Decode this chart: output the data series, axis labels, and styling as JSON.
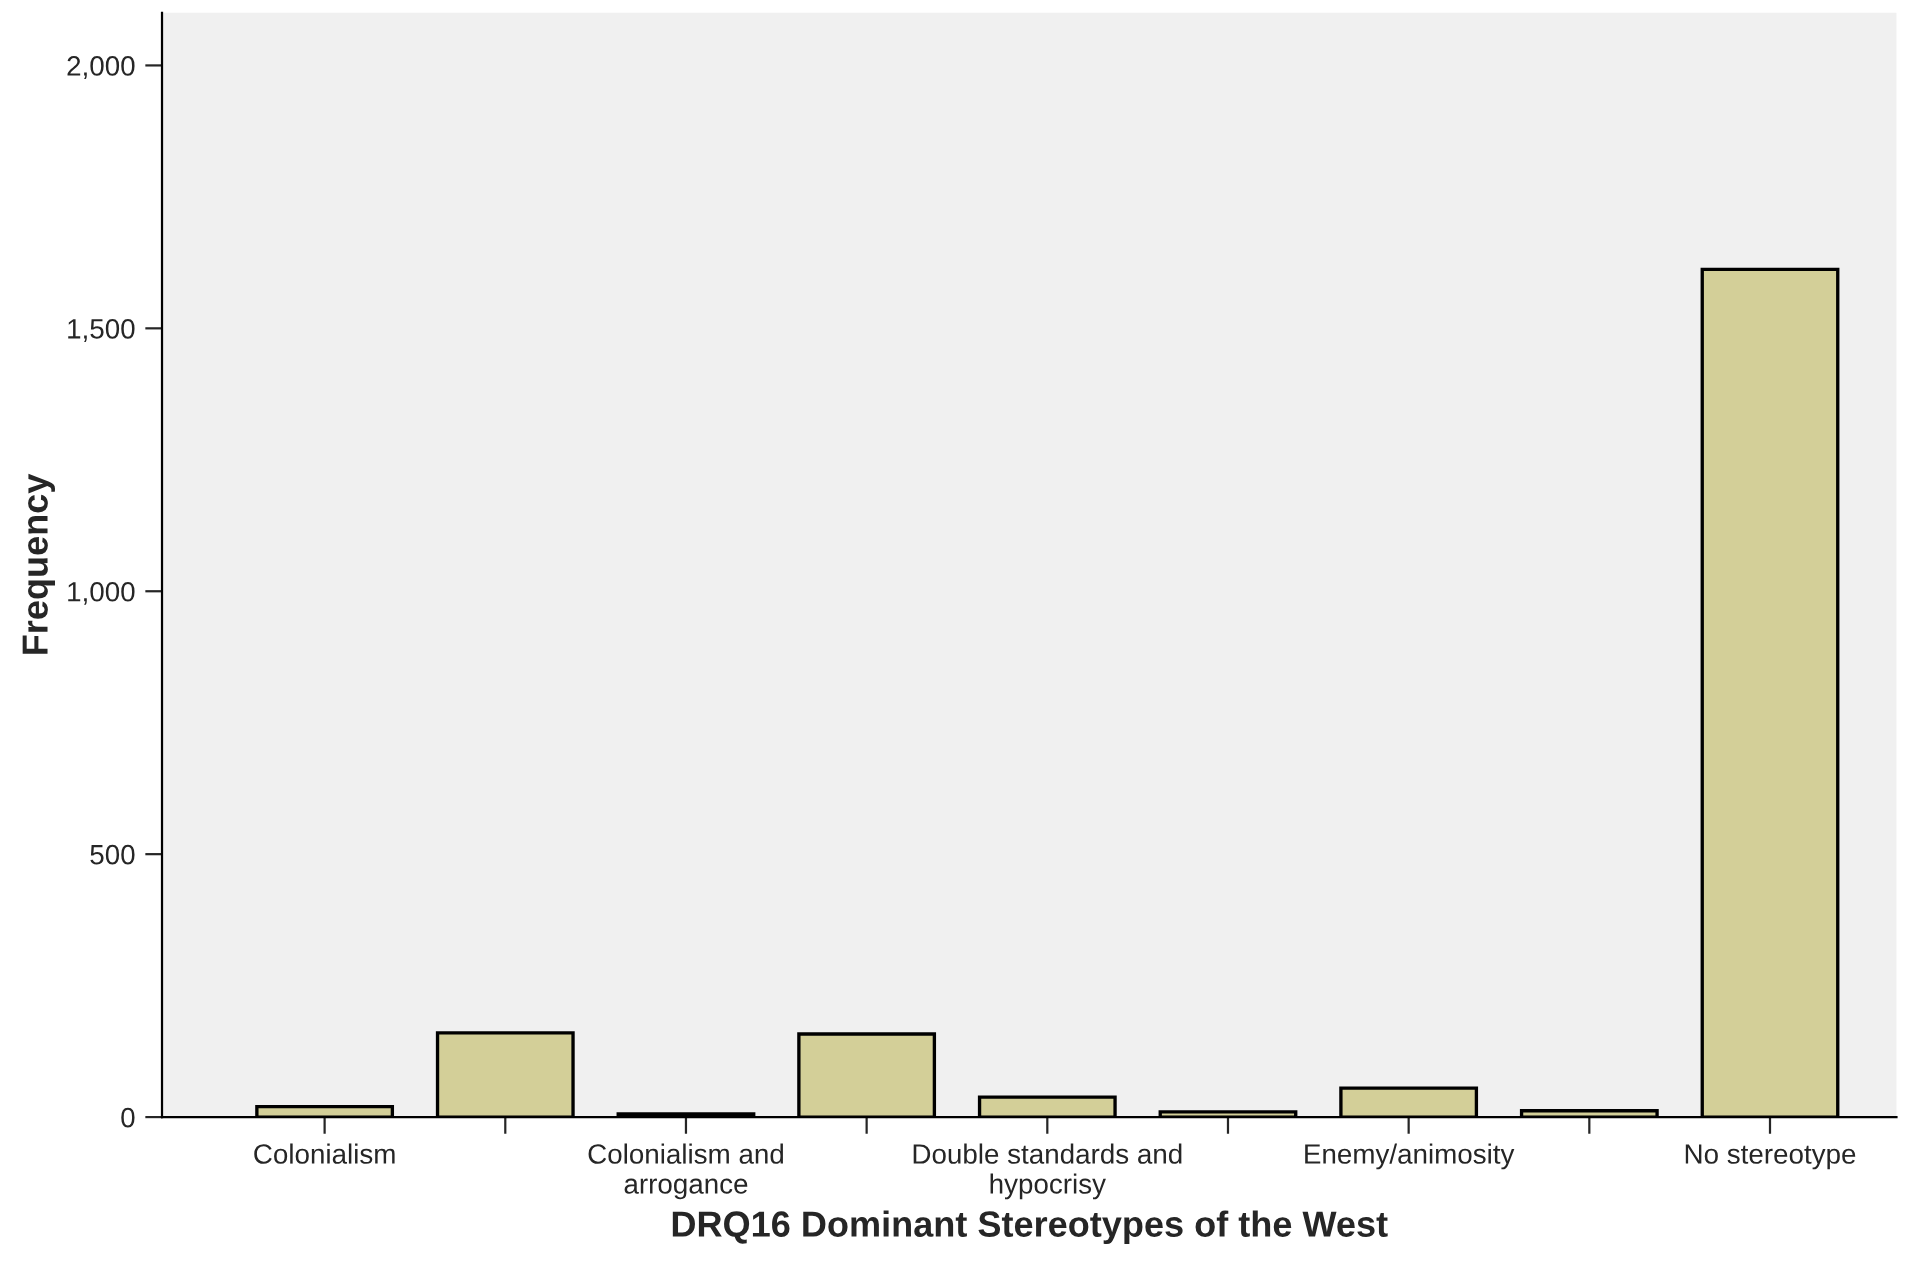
{
  "chart_data": {
    "type": "bar",
    "xlabel": "DRQ16 Dominant Stereotypes of the West",
    "ylabel": "Frequency",
    "categories": [
      "Colonialism",
      null,
      "Colonialism and\narrogance",
      null,
      "Double standards and\nhypocrisy",
      null,
      "Enemy/animosity",
      null,
      "No stereotype"
    ],
    "values": [
      20,
      160,
      6,
      158,
      38,
      10,
      55,
      12,
      1612
    ],
    "color": "#d3cf98",
    "ylim": [
      0,
      2100
    ],
    "yticks": [
      0,
      {
        "value": 500,
        "label": "500"
      },
      {
        "value": 1000,
        "label": "1,000"
      },
      {
        "value": 1500,
        "label": "1,500"
      },
      {
        "value": 2000,
        "label": "2,000"
      }
    ],
    "grid": false
  }
}
